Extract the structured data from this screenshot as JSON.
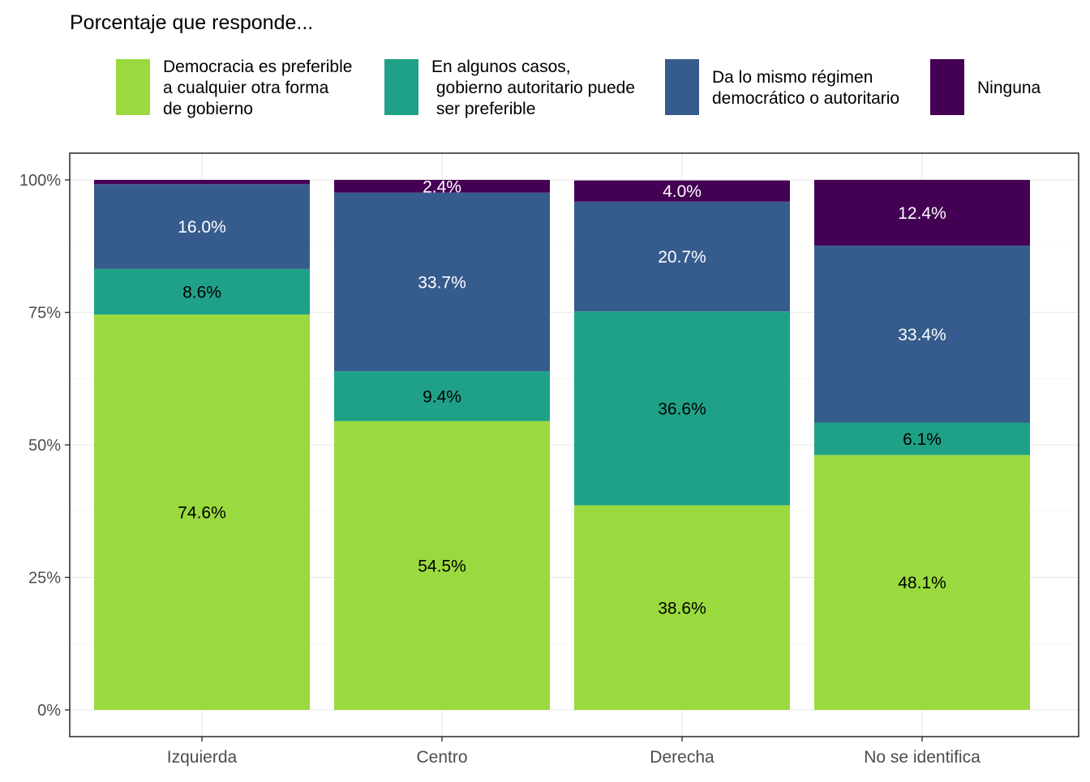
{
  "chart_data": {
    "type": "bar",
    "stacked": true,
    "title": "Porcentaje que responde...",
    "xlabel": "",
    "ylabel": "",
    "ylim": [
      0,
      1
    ],
    "yticks": [
      0,
      0.25,
      0.5,
      0.75,
      1.0
    ],
    "ytick_labels": [
      "0%",
      "25%",
      "50%",
      "75%",
      "100%"
    ],
    "grid": true,
    "legend_position": "top",
    "categories": [
      "Izquierda",
      "Centro",
      "Derecha",
      "No se identifica"
    ],
    "series": [
      {
        "name": "Democracia es preferible a cualquier otra forma de gobierno",
        "legend_lines": [
          "Democracia es preferible",
          "a cualquier otra forma",
          "de gobierno"
        ],
        "color": "#9ADA3E",
        "label_color": "#000000",
        "values": [
          0.746,
          0.545,
          0.386,
          0.481
        ],
        "labels": [
          "74.6%",
          "54.5%",
          "38.6%",
          "48.1%"
        ]
      },
      {
        "name": "En algunos casos, gobierno autoritario puede ser preferible",
        "legend_lines": [
          "En algunos casos,",
          " gobierno autoritario puede",
          " ser preferible"
        ],
        "color": "#1FA188",
        "label_color": "#000000",
        "values": [
          0.086,
          0.094,
          0.366,
          0.061
        ],
        "labels": [
          "8.6%",
          "9.4%",
          "36.6%",
          "6.1%"
        ]
      },
      {
        "name": "Da lo mismo régimen democrático o autoritario",
        "legend_lines": [
          "Da lo mismo régimen",
          "democrático o autoritario"
        ],
        "color": "#365C8D",
        "label_color": "#ffffff",
        "values": [
          0.16,
          0.337,
          0.207,
          0.334
        ],
        "labels": [
          "16.0%",
          "33.7%",
          "20.7%",
          "33.4%"
        ]
      },
      {
        "name": "Ninguna",
        "legend_lines": [
          "Ninguna"
        ],
        "color": "#440154",
        "label_color": "#ffffff",
        "values": [
          0.008,
          0.024,
          0.04,
          0.124
        ],
        "labels": [
          "",
          "2.4%",
          "4.0%",
          "12.4%"
        ]
      }
    ]
  }
}
